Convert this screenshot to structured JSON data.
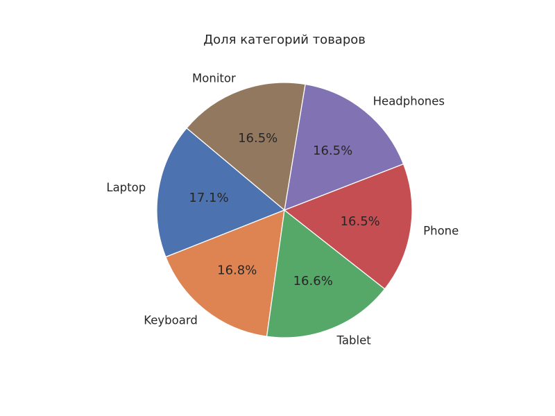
{
  "chart_data": {
    "type": "pie",
    "title": "Доля категорий товаров",
    "categories": [
      "Laptop",
      "Keyboard",
      "Tablet",
      "Phone",
      "Headphones",
      "Monitor"
    ],
    "values": [
      17.1,
      16.8,
      16.6,
      16.5,
      16.5,
      16.5
    ],
    "labels_pct": [
      "17.1%",
      "16.8%",
      "16.6%",
      "16.5%",
      "16.5%",
      "16.5%"
    ],
    "colors": [
      "#4c72b0",
      "#dd8452",
      "#55a868",
      "#c44e52",
      "#8172b3",
      "#937860"
    ],
    "start_angle_deg": 140,
    "direction": "counterclockwise",
    "legend": "none"
  }
}
